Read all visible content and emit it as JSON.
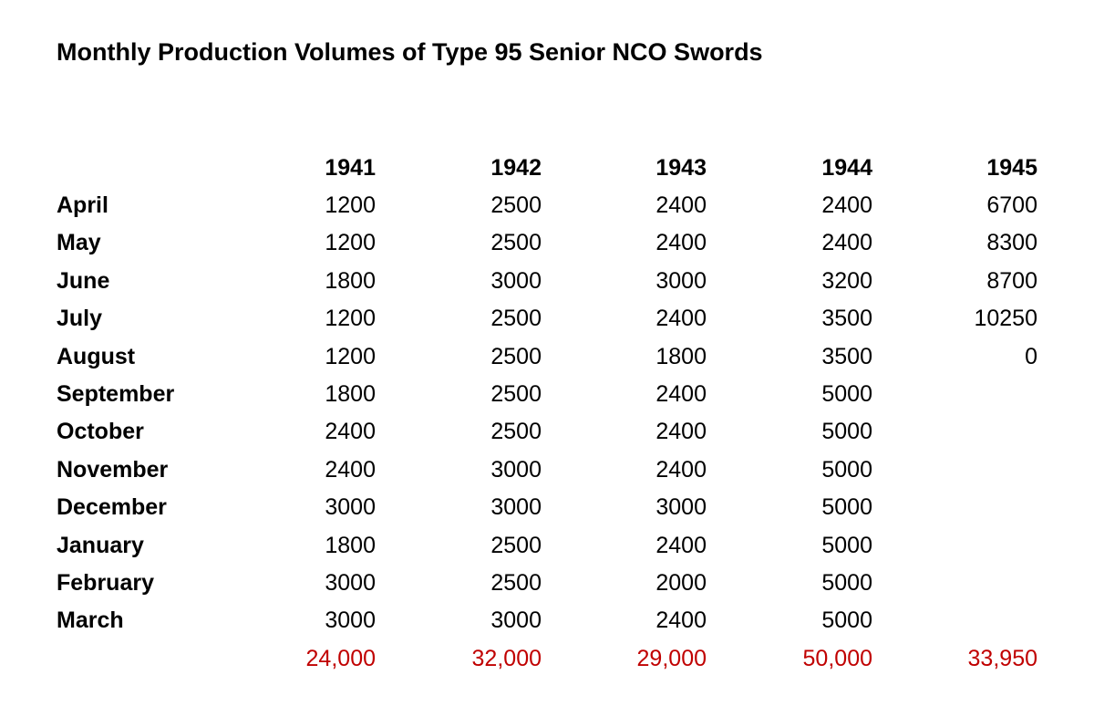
{
  "title": "Monthly Production Volumes of Type 95 Senior NCO Swords",
  "table": {
    "columns": [
      "1941",
      "1942",
      "1943",
      "1944",
      "1945"
    ],
    "rows": [
      [
        "April",
        "1200",
        "2500",
        "2400",
        "2400",
        "6700"
      ],
      [
        "May",
        "1200",
        "2500",
        "2400",
        "2400",
        "8300"
      ],
      [
        "June",
        "1800",
        "3000",
        "3000",
        "3200",
        "8700"
      ],
      [
        "July",
        "1200",
        "2500",
        "2400",
        "3500",
        "10250"
      ],
      [
        "August",
        "1200",
        "2500",
        "1800",
        "3500",
        "0"
      ],
      [
        "September",
        "1800",
        "2500",
        "2400",
        "5000"
      ],
      [
        "October",
        "2400",
        "2500",
        "2400",
        "5000"
      ],
      [
        "November",
        "2400",
        "3000",
        "2400",
        "5000"
      ],
      [
        "December",
        "3000",
        "3000",
        "3000",
        "5000"
      ],
      [
        "January",
        "1800",
        "2500",
        "2400",
        "5000"
      ],
      [
        "February",
        "3000",
        "2500",
        "2000",
        "5000"
      ],
      [
        "March",
        "3000",
        "3000",
        "2400",
        "5000"
      ]
    ],
    "totals": [
      "24,000",
      "32,000",
      "29,000",
      "50,000",
      "33,950"
    ]
  }
}
